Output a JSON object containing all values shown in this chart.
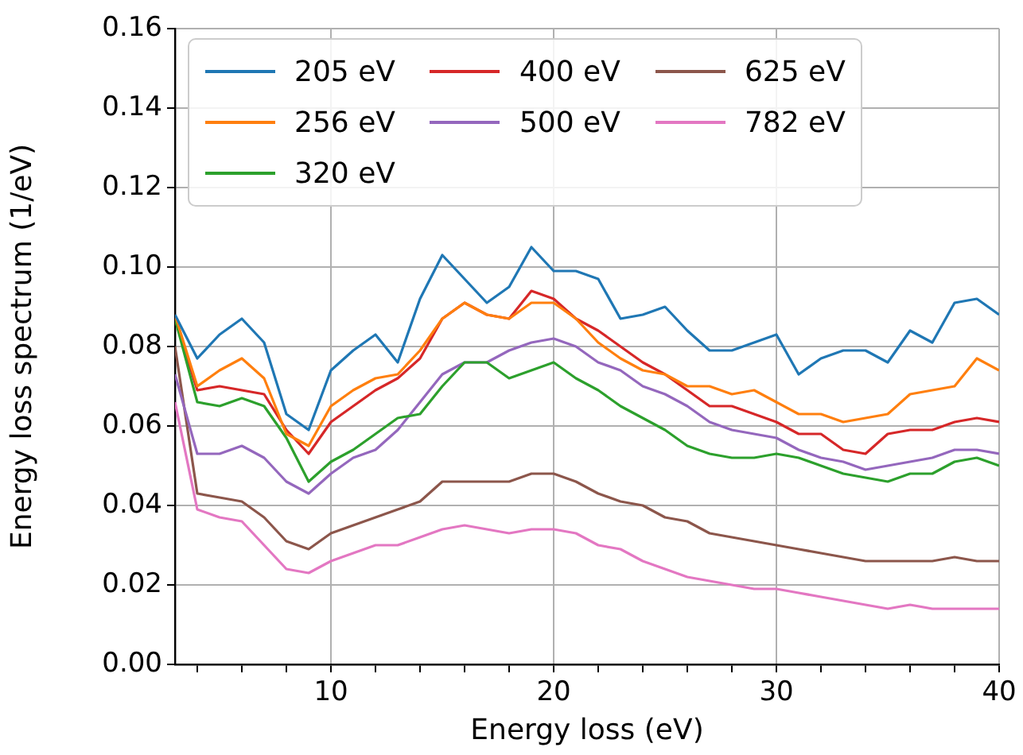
{
  "chart_data": {
    "type": "line",
    "xlabel": "Energy loss (eV)",
    "ylabel": "Energy loss spectrum (1/eV)",
    "x": [
      3,
      4,
      5,
      6,
      7,
      8,
      9,
      10,
      11,
      12,
      13,
      14,
      15,
      16,
      17,
      18,
      19,
      20,
      21,
      22,
      23,
      24,
      25,
      26,
      27,
      28,
      29,
      30,
      31,
      32,
      33,
      34,
      35,
      36,
      37,
      38,
      39,
      40
    ],
    "series": [
      {
        "name": "205 eV",
        "color": "#1f77b4",
        "values": [
          0.088,
          0.077,
          0.083,
          0.087,
          0.081,
          0.063,
          0.059,
          0.074,
          0.079,
          0.083,
          0.076,
          0.092,
          0.103,
          0.097,
          0.091,
          0.095,
          0.105,
          0.099,
          0.099,
          0.097,
          0.087,
          0.088,
          0.09,
          0.084,
          0.079,
          0.079,
          0.081,
          0.083,
          0.073,
          0.077,
          0.079,
          0.079,
          0.076,
          0.084,
          0.081,
          0.091,
          0.092,
          0.088
        ]
      },
      {
        "name": "256 eV",
        "color": "#ff7f0e",
        "values": [
          0.088,
          0.07,
          0.074,
          0.077,
          0.072,
          0.058,
          0.055,
          0.065,
          0.069,
          0.072,
          0.073,
          0.079,
          0.087,
          0.091,
          0.088,
          0.087,
          0.091,
          0.091,
          0.087,
          0.081,
          0.077,
          0.074,
          0.073,
          0.07,
          0.07,
          0.068,
          0.069,
          0.066,
          0.063,
          0.063,
          0.061,
          0.062,
          0.063,
          0.068,
          0.069,
          0.07,
          0.077,
          0.074
        ]
      },
      {
        "name": "320 eV",
        "color": "#2ca02c",
        "values": [
          0.087,
          0.066,
          0.065,
          0.067,
          0.065,
          0.057,
          0.046,
          0.051,
          0.054,
          0.058,
          0.062,
          0.063,
          0.07,
          0.076,
          0.076,
          0.072,
          0.074,
          0.076,
          0.072,
          0.069,
          0.065,
          0.062,
          0.059,
          0.055,
          0.053,
          0.052,
          0.052,
          0.053,
          0.052,
          0.05,
          0.048,
          0.047,
          0.046,
          0.048,
          0.048,
          0.051,
          0.052,
          0.05
        ]
      },
      {
        "name": "400 eV",
        "color": "#d62728",
        "values": [
          0.087,
          0.069,
          0.07,
          0.069,
          0.068,
          0.059,
          0.053,
          0.061,
          0.065,
          0.069,
          0.072,
          0.077,
          0.087,
          0.091,
          0.088,
          0.087,
          0.094,
          0.092,
          0.087,
          0.084,
          0.08,
          0.076,
          0.073,
          0.069,
          0.065,
          0.065,
          0.063,
          0.061,
          0.058,
          0.058,
          0.054,
          0.053,
          0.058,
          0.059,
          0.059,
          0.061,
          0.062,
          0.061
        ]
      },
      {
        "name": "500 eV",
        "color": "#9467bd",
        "values": [
          0.073,
          0.053,
          0.053,
          0.055,
          0.052,
          0.046,
          0.043,
          0.048,
          0.052,
          0.054,
          0.059,
          0.066,
          0.073,
          0.076,
          0.076,
          0.079,
          0.081,
          0.082,
          0.08,
          0.076,
          0.074,
          0.07,
          0.068,
          0.065,
          0.061,
          0.059,
          0.058,
          0.057,
          0.054,
          0.052,
          0.051,
          0.049,
          0.05,
          0.051,
          0.052,
          0.054,
          0.054,
          0.053
        ]
      },
      {
        "name": "625 eV",
        "color": "#8c564b",
        "values": [
          0.08,
          0.043,
          0.042,
          0.041,
          0.037,
          0.031,
          0.029,
          0.033,
          0.035,
          0.037,
          0.039,
          0.041,
          0.046,
          0.046,
          0.046,
          0.046,
          0.048,
          0.048,
          0.046,
          0.043,
          0.041,
          0.04,
          0.037,
          0.036,
          0.033,
          0.032,
          0.031,
          0.03,
          0.029,
          0.028,
          0.027,
          0.026,
          0.026,
          0.026,
          0.026,
          0.027,
          0.026,
          0.026
        ]
      },
      {
        "name": "782 eV",
        "color": "#e377c2",
        "values": [
          0.066,
          0.039,
          0.037,
          0.036,
          0.03,
          0.024,
          0.023,
          0.026,
          0.028,
          0.03,
          0.03,
          0.032,
          0.034,
          0.035,
          0.034,
          0.033,
          0.034,
          0.034,
          0.033,
          0.03,
          0.029,
          0.026,
          0.024,
          0.022,
          0.021,
          0.02,
          0.019,
          0.019,
          0.018,
          0.017,
          0.016,
          0.015,
          0.014,
          0.015,
          0.014,
          0.014,
          0.014,
          0.014
        ]
      }
    ],
    "xlim": [
      3,
      40
    ],
    "xticks": [
      {
        "value": 4,
        "label": null
      },
      {
        "value": 6,
        "label": null
      },
      {
        "value": 8,
        "label": null
      },
      10,
      {
        "value": 12,
        "label": null
      },
      {
        "value": 14,
        "label": null
      },
      {
        "value": 16,
        "label": null
      },
      {
        "value": 18,
        "label": null
      },
      20,
      {
        "value": 22,
        "label": null
      },
      {
        "value": 24,
        "label": null
      },
      {
        "value": 26,
        "label": null
      },
      {
        "value": 28,
        "label": null
      },
      30,
      {
        "value": 32,
        "label": null
      },
      {
        "value": 34,
        "label": null
      },
      {
        "value": 36,
        "label": null
      },
      {
        "value": 38,
        "label": null
      },
      40
    ],
    "ylim": [
      0,
      0.16
    ],
    "yticks": [
      {
        "value": 0,
        "label": "0.00"
      },
      {
        "value": 0.02,
        "label": "0.02"
      },
      {
        "value": 0.04,
        "label": "0.04"
      },
      {
        "value": 0.06,
        "label": "0.06"
      },
      {
        "value": 0.08,
        "label": "0.08"
      },
      {
        "value": 0.1,
        "label": "0.10"
      },
      {
        "value": 0.12,
        "label": "0.12"
      },
      {
        "value": 0.14,
        "label": "0.14"
      },
      {
        "value": 0.16,
        "label": "0.16"
      }
    ],
    "grid": true,
    "legend": "top left",
    "marker": "none",
    "line_style": "solid"
  }
}
